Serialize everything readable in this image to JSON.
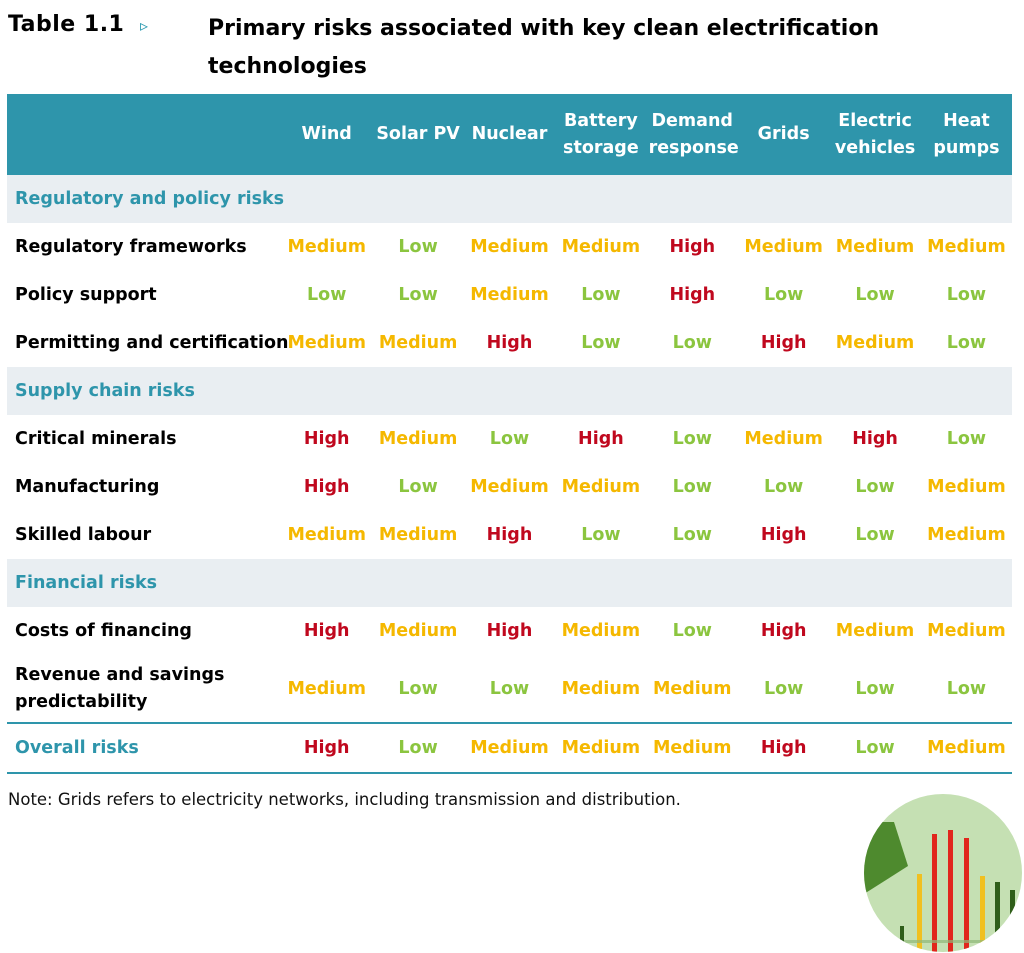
{
  "caption": {
    "label": "Table 1.1",
    "arrow": "▹",
    "title": "Primary risks associated with key clean electrification technologies"
  },
  "table": {
    "columns": [
      [
        "Wind"
      ],
      [
        "Solar PV"
      ],
      [
        "Nuclear"
      ],
      [
        "Battery",
        "storage"
      ],
      [
        "Demand",
        "response"
      ],
      [
        "Grids"
      ],
      [
        "Electric",
        "vehicles"
      ],
      [
        "Heat",
        "pumps"
      ]
    ],
    "sections": [
      {
        "title": "Regulatory and policy risks",
        "rows": [
          {
            "label": [
              "Regulatory frameworks"
            ],
            "values": [
              "Medium",
              "Low",
              "Medium",
              "Medium",
              "High",
              "Medium",
              "Medium",
              "Medium"
            ]
          },
          {
            "label": [
              "Policy support"
            ],
            "values": [
              "Low",
              "Low",
              "Medium",
              "Low",
              "High",
              "Low",
              "Low",
              "Low"
            ]
          },
          {
            "label": [
              "Permitting and certification"
            ],
            "values": [
              "Medium",
              "Medium",
              "High",
              "Low",
              "Low",
              "High",
              "Medium",
              "Low"
            ]
          }
        ]
      },
      {
        "title": "Supply chain risks",
        "rows": [
          {
            "label": [
              "Critical minerals"
            ],
            "values": [
              "High",
              "Medium",
              "Low",
              "High",
              "Low",
              "Medium",
              "High",
              "Low"
            ]
          },
          {
            "label": [
              "Manufacturing"
            ],
            "values": [
              "High",
              "Low",
              "Medium",
              "Medium",
              "Low",
              "Low",
              "Low",
              "Medium"
            ]
          },
          {
            "label": [
              "Skilled labour"
            ],
            "values": [
              "Medium",
              "Medium",
              "High",
              "Low",
              "Low",
              "High",
              "Low",
              "Medium"
            ]
          }
        ]
      },
      {
        "title": "Financial risks",
        "rows": [
          {
            "label": [
              "Costs of financing"
            ],
            "values": [
              "High",
              "Medium",
              "High",
              "Medium",
              "Low",
              "High",
              "Medium",
              "Medium"
            ]
          },
          {
            "label": [
              "Revenue and savings",
              "predictability"
            ],
            "values": [
              "Medium",
              "Low",
              "Low",
              "Medium",
              "Medium",
              "Low",
              "Low",
              "Low"
            ]
          }
        ]
      }
    ],
    "overall": {
      "label": "Overall risks",
      "values": [
        "High",
        "Low",
        "Medium",
        "Medium",
        "Medium",
        "High",
        "Low",
        "Medium"
      ]
    }
  },
  "note": "Note: Grids refers to electricity networks, including transmission and distribution.",
  "colors": {
    "header_bg": "#2e95ab",
    "section_bg": "#e9eef2",
    "high": "#c0081e",
    "medium": "#f5b800",
    "low": "#8bc53f"
  },
  "logo": {
    "icon": "energy-bars-logo-icon",
    "bars": [
      "green-dark",
      "green-dark",
      "yellow",
      "red",
      "red",
      "red",
      "yellow",
      "green-dark",
      "green-dark"
    ]
  }
}
